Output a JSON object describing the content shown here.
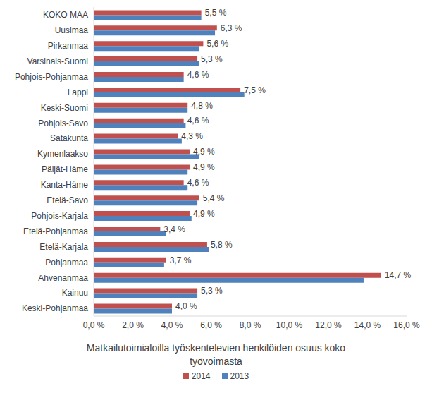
{
  "chart_data": {
    "type": "bar",
    "orientation": "horizontal",
    "x_label": "Matkailutoimialoilla työskentelevien henkilöiden osuus koko työvoimasta",
    "categories": [
      "KOKO MAA",
      "Uusimaa",
      "Pirkanmaa",
      "Varsinais-Suomi",
      "Pohjois-Pohjanmaa",
      "Lappi",
      "Keski-Suomi",
      "Pohjois-Savo",
      "Satakunta",
      "Kymenlaakso",
      "Päijät-Häme",
      "Kanta-Häme",
      "Etelä-Savo",
      "Pohjois-Karjala",
      "Etelä-Pohjanmaa",
      "Etelä-Karjala",
      "Pohjanmaa",
      "Ahvenanmaa",
      "Kainuu",
      "Keski-Pohjanmaa"
    ],
    "series": [
      {
        "name": "2014",
        "color": "#c0504d",
        "values": [
          5.5,
          6.3,
          5.6,
          5.3,
          4.6,
          7.5,
          4.8,
          4.6,
          4.3,
          4.9,
          4.9,
          4.6,
          5.4,
          4.9,
          3.4,
          5.8,
          3.7,
          14.7,
          5.3,
          4.0
        ],
        "value_labels": [
          "5,5 %",
          "6,3 %",
          "5,6 %",
          "5,3 %",
          "4,6 %",
          "7,5 %",
          "4,8 %",
          "4,6 %",
          "4,3 %",
          "4,9 %",
          "4,9 %",
          "4,6 %",
          "5,4 %",
          "4,9 %",
          "3,4 %",
          "5,8 %",
          "3,7 %",
          "14,7 %",
          "5,3 %",
          "4,0 %"
        ]
      },
      {
        "name": "2013",
        "color": "#4f81bd",
        "values": [
          5.5,
          6.2,
          5.4,
          5.4,
          4.6,
          7.7,
          4.8,
          4.7,
          4.5,
          5.4,
          4.8,
          4.8,
          5.3,
          5.0,
          3.7,
          5.9,
          3.6,
          13.8,
          5.3,
          4.0
        ]
      }
    ],
    "xlim": [
      0,
      16
    ],
    "xticks": [
      {
        "value": 0,
        "label": "0,0 %"
      },
      {
        "value": 2,
        "label": "2,0 %"
      },
      {
        "value": 4,
        "label": "4,0 %"
      },
      {
        "value": 6,
        "label": "6,0 %"
      },
      {
        "value": 8,
        "label": "8,0 %"
      },
      {
        "value": 10,
        "label": "10,0 %"
      },
      {
        "value": 12,
        "label": "12,0 %"
      },
      {
        "value": 14,
        "label": "14,0 %"
      },
      {
        "value": 16,
        "label": "16,0 %"
      }
    ],
    "grid": false,
    "legend": "bottom",
    "data_labels": true
  }
}
